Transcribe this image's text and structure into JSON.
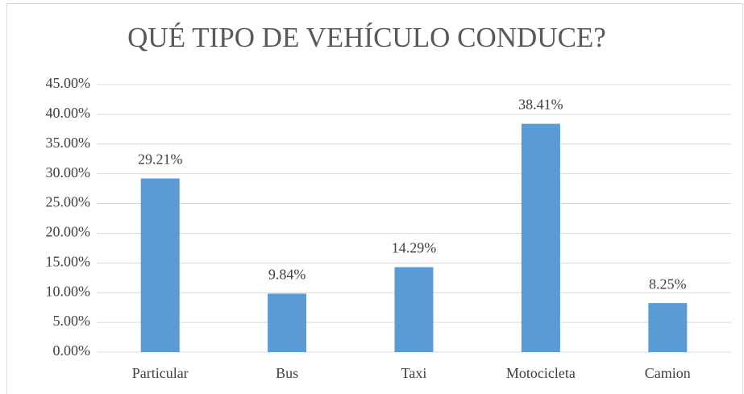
{
  "chart_data": {
    "type": "bar",
    "title": "QUÉ TIPO DE VEHÍCULO CONDUCE?",
    "categories": [
      "Particular",
      "Bus",
      "Taxi",
      "Motocicleta",
      "Camion"
    ],
    "values": [
      29.21,
      9.84,
      14.29,
      38.41,
      8.25
    ],
    "value_labels": [
      "29.21%",
      "9.84%",
      "14.29%",
      "38.41%",
      "8.25%"
    ],
    "color": "#5b9bd5",
    "ylim": [
      0,
      45
    ],
    "yticks": [
      {
        "value": 0,
        "label": "0.00%"
      },
      {
        "value": 5,
        "label": "5.00%"
      },
      {
        "value": 10,
        "label": "10.00%"
      },
      {
        "value": 15,
        "label": "15.00%"
      },
      {
        "value": 20,
        "label": "20.00%"
      },
      {
        "value": 25,
        "label": "25.00%"
      },
      {
        "value": 30,
        "label": "30.00%"
      },
      {
        "value": 35,
        "label": "35.00%"
      },
      {
        "value": 40,
        "label": "40.00%"
      },
      {
        "value": 45,
        "label": "45.00%"
      }
    ],
    "grid": true
  }
}
